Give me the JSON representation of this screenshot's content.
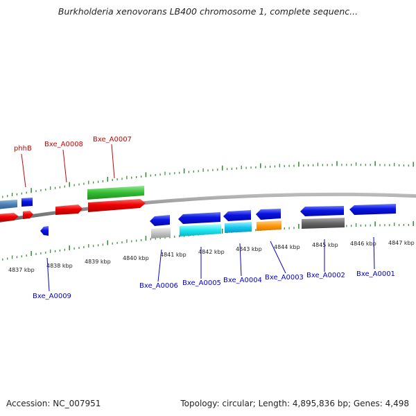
{
  "title": "Burkholderia xenovorans LB400 chromosome 1, complete sequenc...",
  "footer": {
    "accession": "Accession: NC_007951",
    "info": "Topology: circular; Length: 4,895,836 bp; Genes: 4,498"
  },
  "colors": {
    "forward_label": "#cc0000",
    "reverse_label": "#0000cc",
    "tick": "#2a8a2a",
    "backbone": "#888888"
  },
  "kbp_labels": [
    "4837 kbp",
    "4838 kbp",
    "4839 kbp",
    "4840 kbp",
    "4841 kbp",
    "4842 kbp",
    "4843 kbp",
    "4844 kbp",
    "4845 kbp",
    "4846 kbp",
    "4847 kbp"
  ],
  "forward_gene_labels": [
    "phhB",
    "Bxe_A0008",
    "Bxe_A0007"
  ],
  "reverse_gene_labels": [
    "Bxe_A0009",
    "Bxe_A0006",
    "Bxe_A0005",
    "Bxe_A0004",
    "Bxe_A0003",
    "Bxe_A0002",
    "Bxe_A0001"
  ]
}
